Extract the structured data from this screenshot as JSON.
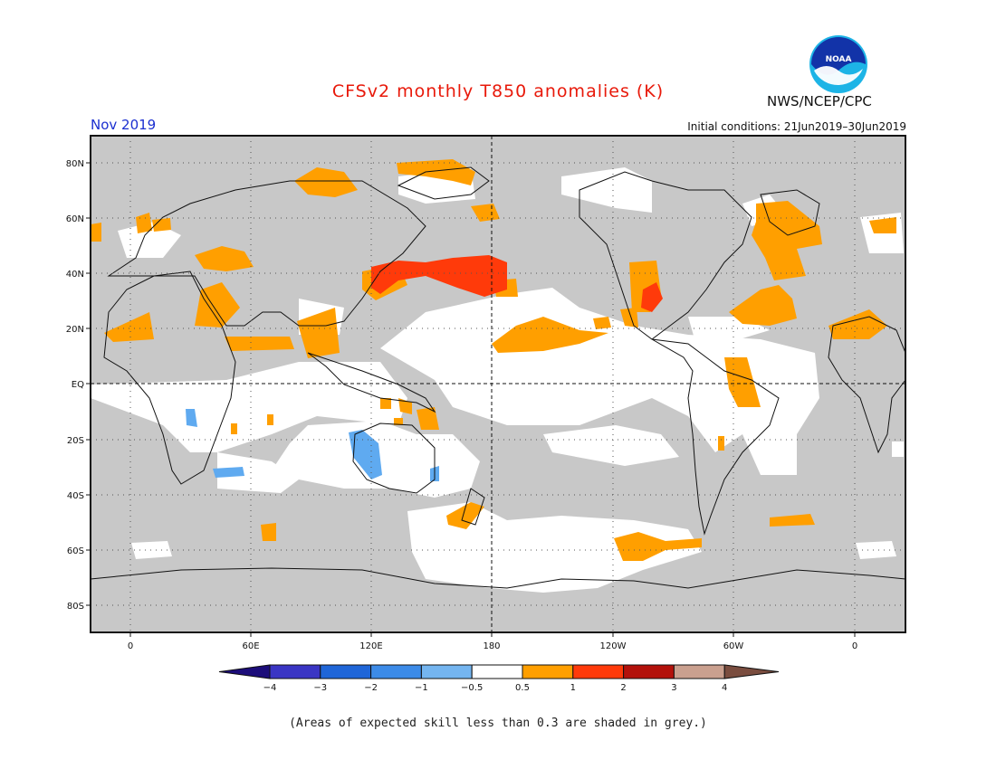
{
  "header": {
    "title": "CFSv2 monthly T850 anomalies (K)",
    "month": "Nov 2019",
    "initial_conditions": "Initial conditions: 21Jun2019–30Jun2019",
    "agency": "NWS/NCEP/CPC",
    "logo_text": "NOAA"
  },
  "map": {
    "lat_labels": [
      "80N",
      "60N",
      "40N",
      "20N",
      "EQ",
      "20S",
      "40S",
      "60S",
      "80S"
    ],
    "lon_labels": [
      "0",
      "60E",
      "120E",
      "180",
      "120W",
      "60W",
      "0"
    ],
    "colors": {
      "skill_grey": "#c8c8c8",
      "orange": "#ff9f00",
      "red_orange": "#ff3a0a",
      "light_blue": "#5faaf0"
    }
  },
  "colorbar": {
    "colors": [
      "#1c0d7a",
      "#3a35c4",
      "#1f66d8",
      "#3c8be8",
      "#74b5f0",
      "#ffffff",
      "#ff9f00",
      "#ff3a0a",
      "#b3110b",
      "#caa08f",
      "#7a4d3f"
    ],
    "tick_labels": [
      "−4",
      "−3",
      "−2",
      "−1",
      "−0.5",
      "0.5",
      "1",
      "2",
      "3",
      "4"
    ]
  },
  "footnote": "(Areas of expected skill less than 0.3 are shaded in grey.)"
}
